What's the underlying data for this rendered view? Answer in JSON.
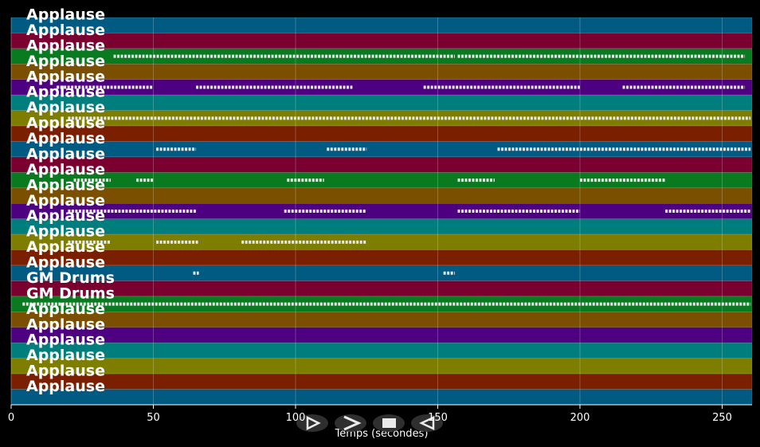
{
  "chart_data": {
    "type": "piano_roll",
    "xlabel": "Temps (secondes)",
    "xlim": [
      0,
      260.5
    ],
    "xticks": [
      0,
      50,
      100,
      150,
      200,
      250
    ],
    "grid": true,
    "note_color": "#e8e8e8",
    "tracks": [
      {
        "label": "Applause",
        "color": "#005a82",
        "notes": []
      },
      {
        "label": "Applause",
        "color": "#7a0030",
        "notes": []
      },
      {
        "label": "Applause",
        "color": "#0a7a20",
        "notes": [
          [
            36,
            156
          ],
          [
            157,
            258
          ]
        ]
      },
      {
        "label": "Applause",
        "color": "#7a5000",
        "notes": []
      },
      {
        "label": "Applause",
        "color": "#4d0080",
        "notes": [
          [
            16,
            50
          ],
          [
            65,
            120
          ],
          [
            145,
            200
          ],
          [
            215,
            258
          ]
        ]
      },
      {
        "label": "Applause",
        "color": "#007d7d",
        "notes": []
      },
      {
        "label": "Applause",
        "color": "#7d7d00",
        "notes": [
          [
            20,
            260
          ]
        ]
      },
      {
        "label": "Applause",
        "color": "#7a2000",
        "notes": []
      },
      {
        "label": "Applause",
        "color": "#005a82",
        "notes": [
          [
            51,
            65
          ],
          [
            111,
            125
          ],
          [
            171,
            260
          ]
        ]
      },
      {
        "label": "Applause",
        "color": "#7a0030",
        "notes": []
      },
      {
        "label": "Applause",
        "color": "#0a7a20",
        "notes": [
          [
            22,
            35
          ],
          [
            44,
            50
          ],
          [
            97,
            110
          ],
          [
            157,
            170
          ],
          [
            200,
            230
          ]
        ]
      },
      {
        "label": "Applause",
        "color": "#7a5000",
        "notes": []
      },
      {
        "label": "Applause",
        "color": "#4d0080",
        "notes": [
          [
            20,
            65
          ],
          [
            96,
            125
          ],
          [
            157,
            200
          ],
          [
            230,
            260
          ]
        ]
      },
      {
        "label": "Applause",
        "color": "#007d7d",
        "notes": []
      },
      {
        "label": "Applause",
        "color": "#7d7d00",
        "notes": [
          [
            20,
            35
          ],
          [
            51,
            66
          ],
          [
            81,
            125
          ]
        ]
      },
      {
        "label": "Applause",
        "color": "#7a2000",
        "notes": []
      },
      {
        "label": "Applause",
        "color": "#005a82",
        "notes": [
          [
            64,
            66
          ],
          [
            152,
            156
          ]
        ]
      },
      {
        "label": "GM Drums",
        "color": "#7a0030",
        "notes": []
      },
      {
        "label": "GM Drums",
        "color": "#0a7a20",
        "notes": [
          [
            4,
            260
          ]
        ]
      },
      {
        "label": "Applause",
        "color": "#7a5000",
        "notes": []
      },
      {
        "label": "Applause",
        "color": "#4d0080",
        "notes": []
      },
      {
        "label": "Applause",
        "color": "#007d7d",
        "notes": []
      },
      {
        "label": "Applause",
        "color": "#7d7d00",
        "notes": []
      },
      {
        "label": "Applause",
        "color": "#7a2000",
        "notes": []
      },
      {
        "label": "Applause",
        "color": "#005a82",
        "notes": []
      }
    ]
  }
}
